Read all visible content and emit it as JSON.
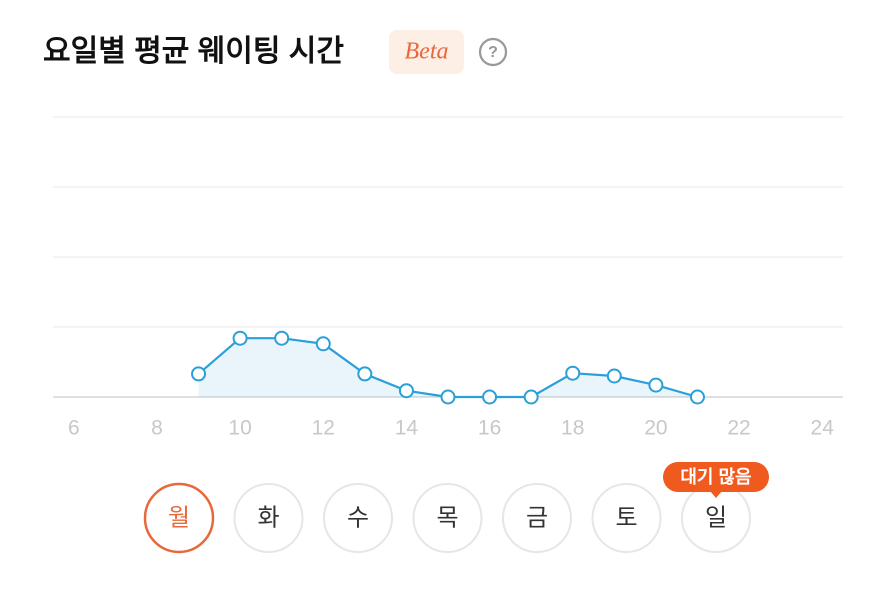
{
  "header": {
    "title": "요일별 평균 웨이팅 시간",
    "badge": "Beta",
    "help": "?"
  },
  "chart_data": {
    "type": "line",
    "x": [
      9,
      10,
      11,
      12,
      13,
      14,
      15,
      16,
      17,
      18,
      19,
      20,
      21
    ],
    "series": [
      {
        "color": "#2a9fd8",
        "values": [
          0.33,
          0.84,
          0.84,
          0.76,
          0.33,
          0.09,
          0,
          0,
          0,
          0.34,
          0.3,
          0.17,
          0
        ]
      }
    ],
    "xlim": [
      5.5,
      24.5
    ],
    "xticks": [
      6,
      8,
      10,
      12,
      14,
      16,
      18,
      20,
      22,
      24
    ],
    "ylim": [
      0,
      4
    ],
    "ygrid": [
      0,
      1,
      2,
      3,
      4
    ],
    "area": true
  },
  "days": {
    "labels": [
      "월",
      "화",
      "수",
      "목",
      "금",
      "토",
      "일"
    ],
    "selected": 0
  },
  "tooltip": {
    "label": "대기 많음",
    "day": 6
  }
}
